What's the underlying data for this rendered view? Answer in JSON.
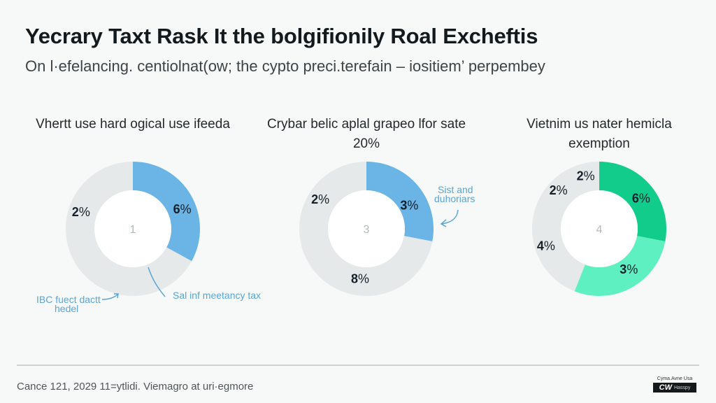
{
  "header": {
    "title": "Yecrary Taxt Rask It the bolgifionily Roal Excheftis",
    "subtitle": "On l·efelancing. centiolnat(ow; the cypto preci.terefain – iositiem’ perpembey"
  },
  "colors": {
    "blue": "#6bb4e6",
    "gray": "#e6e9e9",
    "green_dark": "#12cc8c",
    "green_light": "#5ff0c2",
    "annotation": "#5aa5d6"
  },
  "chart_data": [
    {
      "type": "pie",
      "variant": "donut",
      "title": "Vhertt use hard ogical use ifeeda",
      "center_label": "1",
      "segments": [
        {
          "label": "6%",
          "share": 0.33,
          "color": "#6bb4e6"
        },
        {
          "label": "2%",
          "share": 0.67,
          "color": "#e6e9e9"
        }
      ],
      "annotations": [
        {
          "text": "Sal inf meetancy tax",
          "points_to": "gray segment"
        },
        {
          "text": "IBC fuect dactt hedel",
          "points_to": "gray segment"
        }
      ]
    },
    {
      "type": "pie",
      "variant": "donut",
      "title": "Crybar belic aplal grapeo lfor sate 20%",
      "center_label": "3",
      "segments": [
        {
          "label": "3%",
          "share": 0.28,
          "color": "#6bb4e6"
        },
        {
          "label": "8%",
          "share": 0.36,
          "color": "#e6e9e9"
        },
        {
          "label": "2%",
          "share": 0.36,
          "color": "#e6e9e9"
        }
      ],
      "annotations": [
        {
          "text": "Sist and duhoriars",
          "points_to": "blue segment"
        }
      ]
    },
    {
      "type": "pie",
      "variant": "donut",
      "title": "Vietnim us nater hemicla exemption",
      "center_label": "4",
      "segments": [
        {
          "label": "6%",
          "share": 0.28,
          "color": "#12cc8c"
        },
        {
          "label": "3%",
          "share": 0.28,
          "color": "#5ff0c2"
        },
        {
          "label": "4%",
          "share": 0.26,
          "color": "#e6e9e9"
        },
        {
          "label": "2%",
          "share": 0.1,
          "color": "#e6e9e9"
        },
        {
          "label": "2%",
          "share": 0.08,
          "color": "#e6e9e9"
        }
      ],
      "annotations": []
    }
  ],
  "footer": {
    "text": "Cance 121, 2029 11=ytlidi. Viemagro at uri·egmore",
    "badge_top": "Cyma.Avne Usa",
    "badge_mark": "CW",
    "badge_sub": "Hasspy"
  }
}
